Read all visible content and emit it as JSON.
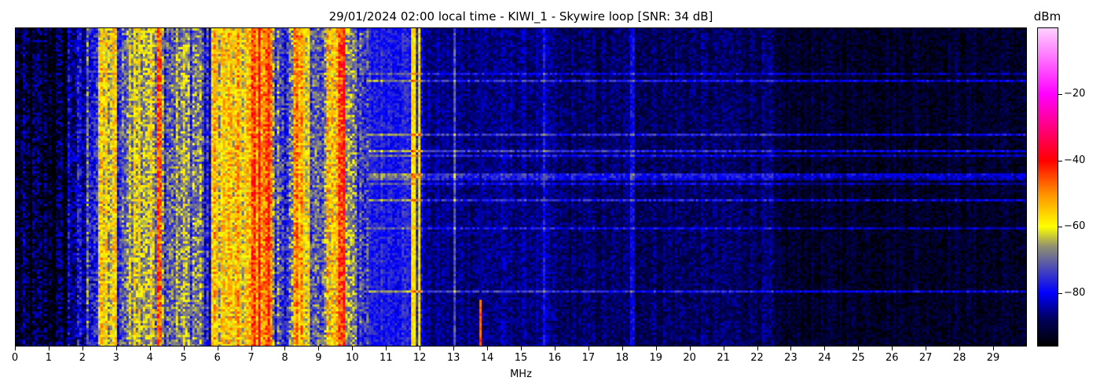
{
  "chart_data": {
    "type": "heatmap",
    "title": "29/01/2024 02:00 local time - KIWI_1 - Skywire loop [SNR: 34 dB]",
    "xlabel": "MHz",
    "ylabel": "",
    "xlim": [
      0,
      30
    ],
    "x_ticks": [
      "0",
      "1",
      "2",
      "3",
      "4",
      "5",
      "6",
      "7",
      "8",
      "9",
      "10",
      "11",
      "12",
      "13",
      "14",
      "15",
      "16",
      "17",
      "18",
      "19",
      "20",
      "21",
      "22",
      "23",
      "24",
      "25",
      "26",
      "27",
      "28",
      "29"
    ],
    "colorbar": {
      "label": "dBm",
      "range": [
        -96,
        0
      ],
      "ticks": [
        -20,
        -40,
        -60,
        -80
      ],
      "tick_labels": [
        "−20",
        "−40",
        "−60",
        "−80"
      ],
      "colormap": [
        {
          "dbm": -96,
          "color": "#000000"
        },
        {
          "dbm": -88,
          "color": "#00005a"
        },
        {
          "dbm": -80,
          "color": "#0000ff"
        },
        {
          "dbm": -72,
          "color": "#5050b0"
        },
        {
          "dbm": -66,
          "color": "#909070"
        },
        {
          "dbm": -60,
          "color": "#ffff00"
        },
        {
          "dbm": -50,
          "color": "#ff9000"
        },
        {
          "dbm": -40,
          "color": "#ff0000"
        },
        {
          "dbm": -30,
          "color": "#ff0080"
        },
        {
          "dbm": -20,
          "color": "#ff00ff"
        },
        {
          "dbm": 0,
          "color": "#ffd0ff"
        }
      ]
    },
    "band_levels_dbm": [
      {
        "from": 0,
        "to": 1.5,
        "level": -93
      },
      {
        "from": 1.5,
        "to": 2.1,
        "level": -84
      },
      {
        "from": 2.1,
        "to": 2.4,
        "level": -74
      },
      {
        "from": 2.4,
        "to": 3.0,
        "level": -61
      },
      {
        "from": 3.0,
        "to": 3.3,
        "level": -74
      },
      {
        "from": 3.3,
        "to": 4.2,
        "level": -63
      },
      {
        "from": 4.2,
        "to": 4.35,
        "level": -42
      },
      {
        "from": 4.35,
        "to": 5.6,
        "level": -68
      },
      {
        "from": 5.6,
        "to": 5.8,
        "level": -80
      },
      {
        "from": 5.8,
        "to": 7.0,
        "level": -58
      },
      {
        "from": 7.0,
        "to": 7.6,
        "level": -46
      },
      {
        "from": 7.6,
        "to": 8.2,
        "level": -72
      },
      {
        "from": 8.2,
        "to": 8.7,
        "level": -55
      },
      {
        "from": 8.7,
        "to": 9.2,
        "level": -73
      },
      {
        "from": 9.2,
        "to": 9.55,
        "level": -55
      },
      {
        "from": 9.55,
        "to": 9.75,
        "level": -43
      },
      {
        "from": 9.75,
        "to": 10.1,
        "level": -64
      },
      {
        "from": 10.1,
        "to": 12.1,
        "level": -77
      },
      {
        "from": 12.1,
        "to": 16,
        "level": -86
      },
      {
        "from": 16,
        "to": 22.5,
        "level": -88
      },
      {
        "from": 22.5,
        "to": 30,
        "level": -92
      }
    ],
    "narrow_signals_mhz": [
      {
        "freq": 11.8,
        "level": -58
      },
      {
        "freq": 12.0,
        "level": -60
      },
      {
        "freq": 13.0,
        "level": -72
      },
      {
        "freq": 13.8,
        "level": -45
      },
      {
        "freq": 15.7,
        "level": -78
      },
      {
        "freq": 18.3,
        "level": -80
      }
    ]
  }
}
